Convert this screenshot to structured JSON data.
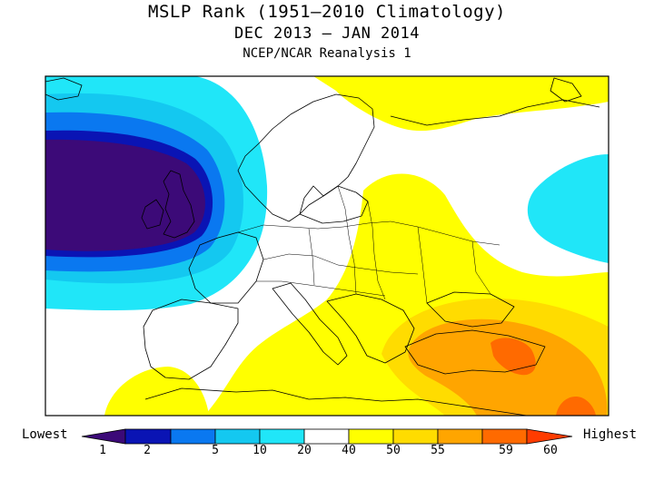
{
  "title": "MSLP Rank (1951—2010 Climatology)",
  "period": "DEC 2013 — JAN 2014",
  "source": "NCEP/NCAR Reanalysis 1",
  "colorbar": {
    "low_label": "Lowest",
    "high_label": "Highest",
    "ticks": [
      "1",
      "2",
      "5",
      "10",
      "20",
      "40",
      "50",
      "55",
      "59",
      "60"
    ],
    "colors": [
      "#3c0a78",
      "#0a14b4",
      "#0a78f0",
      "#14c8f0",
      "#20e6f8",
      "#ffffff",
      "#ffff00",
      "#ffdc00",
      "#ffa500",
      "#ff6a00",
      "#ff3c00"
    ]
  },
  "map_regions": {
    "lowest_core": "#3c0a78",
    "rank_2": "#0a14b4",
    "rank_5": "#0a78f0",
    "rank_10": "#14c8f0",
    "rank_20": "#20e6f8",
    "neutral": "#ffffff",
    "rank_50": "#ffff00",
    "rank_55": "#ffdc00",
    "rank_59": "#ffa500",
    "rank_60": "#ff6a00"
  }
}
